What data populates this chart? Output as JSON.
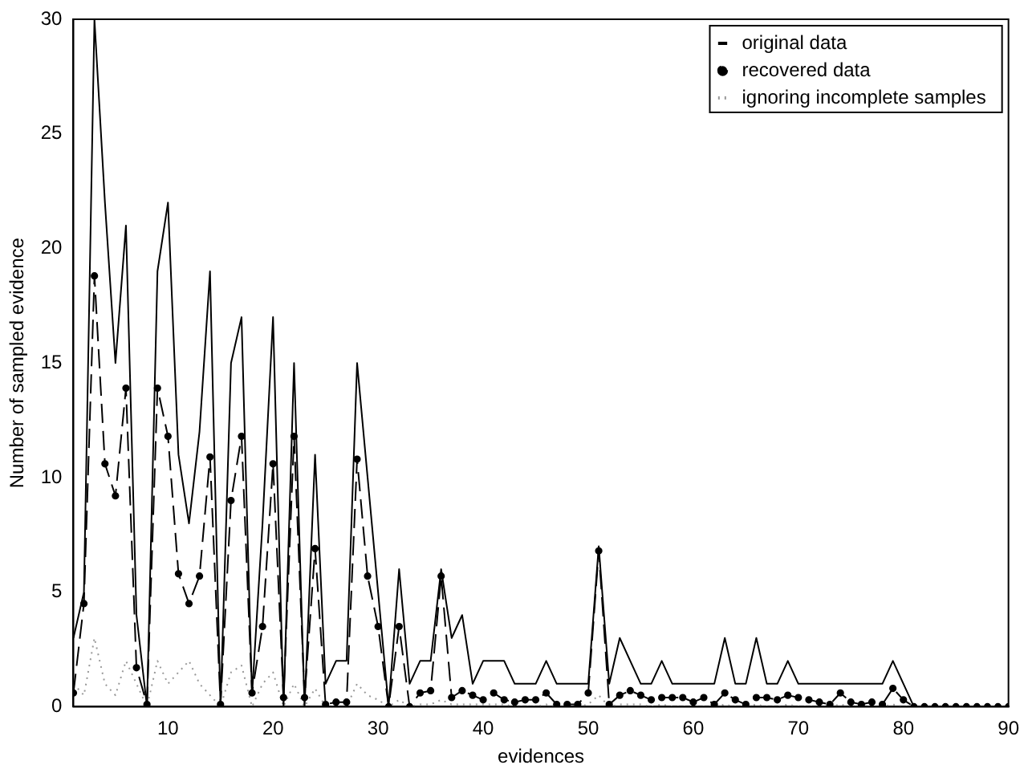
{
  "chart_data": {
    "type": "line",
    "xlabel": "evidences",
    "ylabel": "Number of sampled evidence",
    "x": [
      1,
      2,
      3,
      4,
      5,
      6,
      7,
      8,
      9,
      10,
      11,
      12,
      13,
      14,
      15,
      16,
      17,
      18,
      19,
      20,
      21,
      22,
      23,
      24,
      25,
      26,
      27,
      28,
      29,
      30,
      31,
      32,
      33,
      34,
      35,
      36,
      37,
      38,
      39,
      40,
      41,
      42,
      43,
      44,
      45,
      46,
      47,
      48,
      49,
      50,
      51,
      52,
      53,
      54,
      55,
      56,
      57,
      58,
      59,
      60,
      61,
      62,
      63,
      64,
      65,
      66,
      67,
      68,
      69,
      70,
      71,
      72,
      73,
      74,
      75,
      76,
      77,
      78,
      79,
      80,
      81,
      82,
      83,
      84,
      85,
      86,
      87,
      88,
      89,
      90
    ],
    "series": [
      {
        "name": "original data",
        "color": "#000000",
        "line_style": "solid",
        "marker": "none",
        "values": [
          3,
          5,
          30,
          22,
          15,
          21,
          4,
          0,
          19,
          22,
          11,
          8,
          12,
          19,
          0,
          15,
          17,
          0.5,
          8,
          17,
          0,
          15,
          0,
          11,
          1,
          2,
          2,
          15,
          10,
          5,
          0,
          6,
          1,
          2,
          2,
          6,
          3,
          4,
          1,
          2,
          2,
          2,
          1,
          1,
          1,
          2,
          1,
          1,
          1,
          1,
          7,
          1,
          3,
          2,
          1,
          1,
          2,
          1,
          1,
          1,
          1,
          1,
          3,
          1,
          1,
          3,
          1,
          1,
          2,
          1,
          1,
          1,
          1,
          1,
          1,
          1,
          1,
          1,
          2,
          1,
          0,
          0,
          0,
          0,
          0,
          0,
          0,
          0,
          0,
          0
        ]
      },
      {
        "name": "recovered data",
        "color": "#000000",
        "line_style": "dashed",
        "marker": "circle",
        "values": [
          0.6,
          4.5,
          18.8,
          10.6,
          9.2,
          13.9,
          1.7,
          0.1,
          13.9,
          11.8,
          5.8,
          4.5,
          5.7,
          10.9,
          0.1,
          9,
          11.8,
          0.6,
          3.5,
          10.6,
          0.4,
          11.8,
          0.4,
          6.9,
          0.1,
          0.2,
          0.2,
          10.8,
          5.7,
          3.5,
          0,
          3.5,
          0,
          0.6,
          0.7,
          5.7,
          0.4,
          0.7,
          0.5,
          0.3,
          0.6,
          0.3,
          0.2,
          0.3,
          0.3,
          0.6,
          0.1,
          0.1,
          0.1,
          0.6,
          6.8,
          0.1,
          0.5,
          0.7,
          0.5,
          0.3,
          0.4,
          0.4,
          0.4,
          0.2,
          0.4,
          0.1,
          0.6,
          0.3,
          0.1,
          0.4,
          0.4,
          0.3,
          0.5,
          0.4,
          0.3,
          0.2,
          0.1,
          0.6,
          0.2,
          0.1,
          0.2,
          0.1,
          0.8,
          0.3,
          0,
          0,
          0,
          0,
          0,
          0,
          0,
          0,
          0,
          0
        ]
      },
      {
        "name": "ignoring incomplete samples",
        "color": "#999999",
        "line_style": "dotted",
        "marker": "none",
        "values": [
          1,
          0.5,
          3,
          1,
          0.5,
          2,
          1,
          0,
          2,
          1,
          1.5,
          2,
          1,
          0.5,
          0,
          1.5,
          1.8,
          0,
          1,
          1.5,
          0,
          1,
          0,
          0.8,
          0,
          0,
          0,
          1,
          0.5,
          0.3,
          0,
          0.3,
          0,
          0.1,
          0.1,
          0.3,
          0.1,
          0.1,
          0.1,
          0.1,
          0.1,
          0.1,
          0,
          0,
          0,
          0.1,
          0,
          0,
          0,
          0.1,
          0.5,
          0,
          0.1,
          0.1,
          0.1,
          0,
          0.1,
          0,
          0,
          0,
          0,
          0,
          0.1,
          0,
          0,
          0.1,
          0,
          0,
          0.1,
          0,
          0,
          0,
          0,
          0.1,
          0,
          0,
          0,
          0,
          0.1,
          0,
          0,
          0,
          0,
          0,
          0,
          0,
          0,
          0,
          0,
          0
        ]
      }
    ],
    "xlim": [
      1,
      90
    ],
    "xticks": [
      10,
      20,
      30,
      40,
      50,
      60,
      70,
      80,
      90
    ],
    "ylim": [
      0,
      30
    ],
    "yticks": [
      0,
      5,
      10,
      15,
      20,
      25,
      30
    ],
    "grid": false,
    "legend": "top right"
  }
}
